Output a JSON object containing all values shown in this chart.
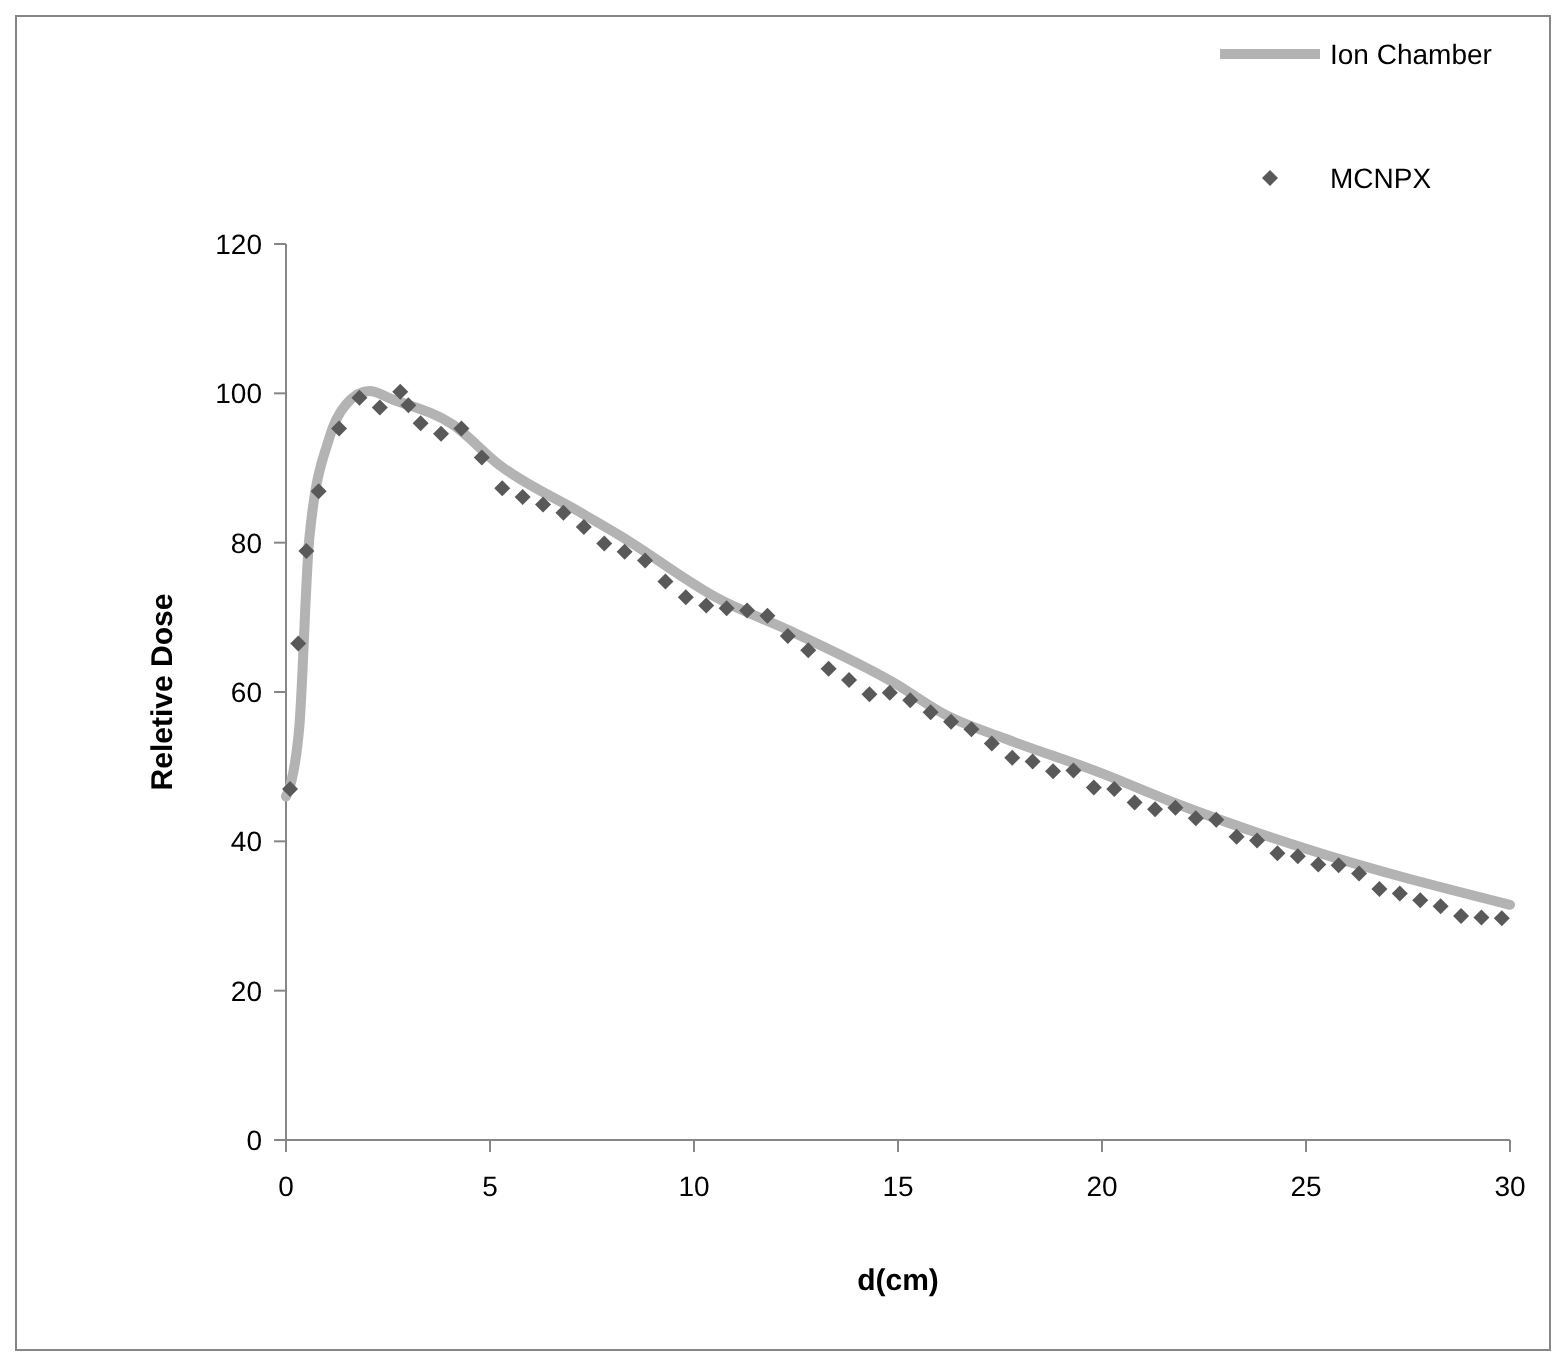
{
  "chart_data": {
    "type": "line",
    "xlabel": "d(cm)",
    "ylabel": "Reletive Dose",
    "xlim": [
      0,
      30
    ],
    "xticks": [
      0,
      5,
      10,
      15,
      20,
      25,
      30
    ],
    "ylim": [
      0,
      120
    ],
    "yticks": [
      0,
      20,
      40,
      60,
      80,
      100,
      120
    ],
    "grid": false,
    "legend": "top right",
    "series": [
      {
        "name": "Ion Chamber",
        "color": "#b3b3b3",
        "marker": "none",
        "x": [
          0,
          0.13,
          0.33,
          0.57,
          1.06,
          1.47,
          2.04,
          2.6,
          4.09,
          5.23,
          7.2,
          8.17,
          10.6,
          12.43,
          14.88,
          16.18,
          17.65,
          19.95,
          21.75,
          25,
          30
        ],
        "values": [
          46,
          48,
          55.6,
          80.5,
          94,
          98.5,
          100.3,
          99.2,
          95.8,
          90.4,
          84.1,
          81,
          72.5,
          68,
          61.3,
          56.9,
          53.7,
          49.2,
          45.2,
          39,
          31.5
        ]
      },
      {
        "name": "MCNPX",
        "type": "scatter",
        "color": "#595959",
        "marker": "diamond",
        "x": [
          0.1,
          0.3,
          0.5,
          0.8,
          1.3,
          1.8,
          2.3,
          2.8,
          3.0,
          3.3,
          3.8,
          4.3,
          4.8,
          5.3,
          5.8,
          6.3,
          6.8,
          7.3,
          7.8,
          8.3,
          8.8,
          9.3,
          9.8,
          10.3,
          10.8,
          11.3,
          11.8,
          12.3,
          12.8,
          13.3,
          13.8,
          14.3,
          14.8,
          15.3,
          15.8,
          16.3,
          16.8,
          17.3,
          17.8,
          18.3,
          18.8,
          19.3,
          19.8,
          20.3,
          20.8,
          21.3,
          21.8,
          22.3,
          22.8,
          23.3,
          23.8,
          24.3,
          24.8,
          25.3,
          25.8,
          26.3,
          26.8,
          27.3,
          27.8,
          28.3,
          28.8,
          29.3,
          29.8
        ],
        "values": [
          47,
          66.5,
          78.9,
          86.9,
          95.3,
          99.4,
          98.1,
          100.2,
          98.4,
          96,
          94.6,
          95.3,
          91.4,
          87.3,
          86.1,
          85.1,
          84,
          82.1,
          79.9,
          78.8,
          77.6,
          74.8,
          72.7,
          71.6,
          71.2,
          70.9,
          70.2,
          67.5,
          65.6,
          63.1,
          61.6,
          59.7,
          59.9,
          58.9,
          57.3,
          56,
          55,
          53.1,
          51.2,
          50.7,
          49.4,
          49.5,
          47.2,
          47,
          45.2,
          44.3,
          44.5,
          43.1,
          42.9,
          40.6,
          40.1,
          38.4,
          38,
          36.9,
          36.8,
          35.7,
          33.6,
          33,
          32.1,
          31.3,
          30,
          29.8,
          29.7
        ]
      }
    ]
  }
}
